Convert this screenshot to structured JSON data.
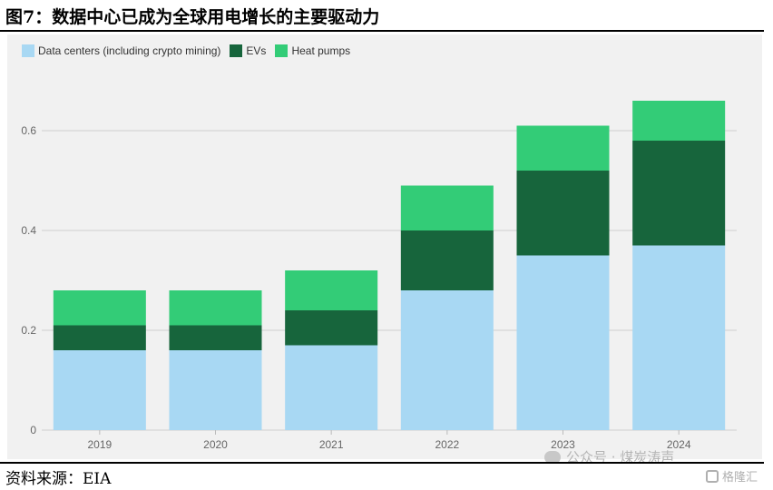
{
  "figure": {
    "title": "图7：数据中心已成为全球用电增长的主要驱动力",
    "source": "资料来源：EIA"
  },
  "watermark": {
    "text": "公众号 · 煤炭涛声",
    "logo_text": "格隆汇"
  },
  "chart_data": {
    "type": "bar",
    "stacked": true,
    "title": "",
    "xlabel": "",
    "ylabel": "",
    "categories": [
      "2019",
      "2020",
      "2021",
      "2022",
      "2023",
      "2024"
    ],
    "series": [
      {
        "name": "Data centers (including crypto mining)",
        "color": "#a8d8f3",
        "values": [
          0.16,
          0.16,
          0.17,
          0.28,
          0.35,
          0.37
        ]
      },
      {
        "name": "EVs",
        "color": "#17653c",
        "values": [
          0.05,
          0.05,
          0.07,
          0.12,
          0.17,
          0.21
        ]
      },
      {
        "name": "Heat pumps",
        "color": "#33cc77",
        "values": [
          0.07,
          0.07,
          0.08,
          0.09,
          0.09,
          0.08
        ]
      }
    ],
    "ylim": [
      0,
      0.72
    ],
    "yticks": [
      "0",
      "0.2",
      "0.4",
      "0.6"
    ],
    "ytick_values": [
      0,
      0.2,
      0.4,
      0.6
    ],
    "grid": true,
    "legend": "top-left"
  }
}
